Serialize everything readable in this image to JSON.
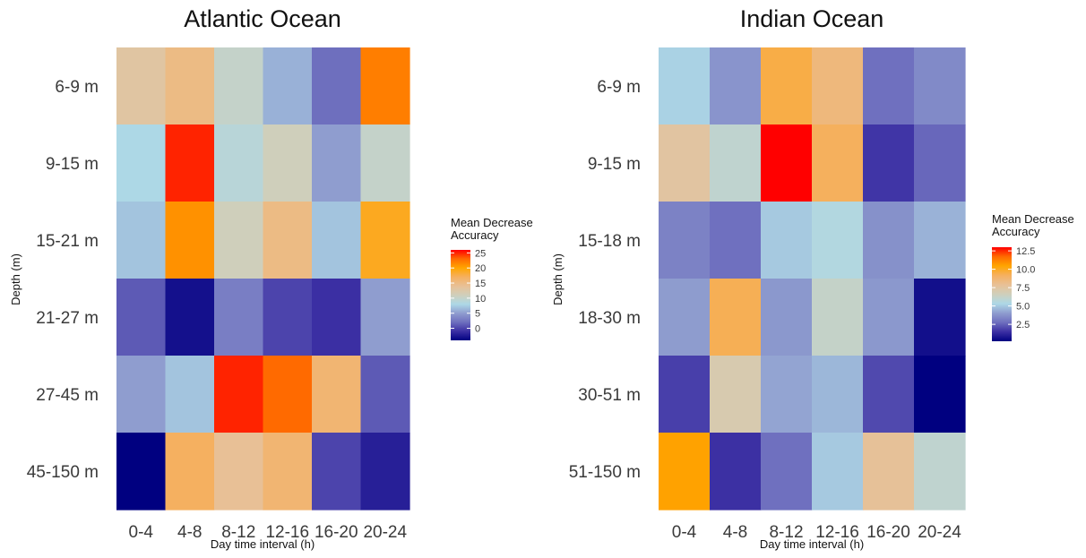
{
  "colors": {
    "scale": [
      "#000080",
      "#3b2fa3",
      "#6e6fbe",
      "#8f9dcf",
      "#add8e6",
      "#cfcfbb",
      "#e8c096",
      "#f5b060",
      "#ffa500",
      "#ff6a00",
      "#ff0000"
    ]
  },
  "chart_data": [
    {
      "type": "heatmap",
      "title": "Atlantic Ocean",
      "xlabel": "Day time interval (h)",
      "ylabel": "Depth (m)",
      "x_categories": [
        "0-4",
        "4-8",
        "8-12",
        "12-16",
        "16-20",
        "20-24"
      ],
      "y_categories": [
        "6-9 m",
        "9-15 m",
        "15-21 m",
        "21-27 m",
        "27-45 m",
        "45-150 m"
      ],
      "values": [
        [
          13,
          15,
          10,
          6,
          2,
          22
        ],
        [
          8,
          25,
          9,
          11,
          5,
          10
        ],
        [
          7,
          21,
          11,
          15,
          7,
          19
        ],
        [
          1,
          -3,
          3,
          0,
          -1,
          5
        ],
        [
          5,
          7,
          25,
          23,
          16,
          1
        ],
        [
          -4,
          17,
          14,
          16,
          0,
          -2
        ]
      ],
      "color_range": [
        -4,
        26
      ],
      "legend": {
        "title": "Mean Decrease\nAccuracy",
        "ticks": [
          0,
          5,
          10,
          15,
          20,
          25
        ]
      }
    },
    {
      "type": "heatmap",
      "title": "Indian Ocean",
      "xlabel": "Day time interval (h)",
      "ylabel": "Depth (m)",
      "x_categories": [
        "0-4",
        "4-8",
        "8-12",
        "12-16",
        "16-20",
        "20-24"
      ],
      "y_categories": [
        "6-9 m",
        "9-15 m",
        "15-18 m",
        "18-30 m",
        "30-51 m",
        "51-150 m"
      ],
      "values": [
        [
          5.2,
          3.8,
          9.5,
          8.5,
          2.8,
          3.5
        ],
        [
          7.5,
          6.0,
          13.0,
          9.2,
          1.6,
          2.6
        ],
        [
          3.3,
          2.8,
          5.0,
          5.5,
          3.7,
          4.5
        ],
        [
          4.0,
          9.3,
          3.9,
          6.2,
          3.9,
          0.6
        ],
        [
          1.8,
          7.0,
          4.2,
          4.6,
          2.0,
          0.2
        ],
        [
          10.5,
          1.5,
          2.8,
          5.0,
          7.8,
          6.0
        ]
      ],
      "color_range": [
        0.2,
        13.0
      ],
      "legend": {
        "title": "Mean Decrease\nAccuracy",
        "ticks": [
          2.5,
          5.0,
          7.5,
          10.0,
          12.5
        ]
      }
    }
  ]
}
